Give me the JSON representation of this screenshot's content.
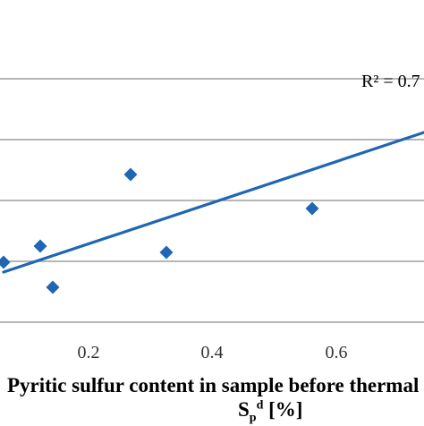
{
  "chart_data": {
    "type": "scatter",
    "x_ticks": [
      "0.2",
      "0.4",
      "0.6"
    ],
    "x_tick_values": [
      0.2,
      0.4,
      0.6
    ],
    "xlim": [
      0.0,
      0.8
    ],
    "ylim": [
      0.0,
      1.0
    ],
    "series": [
      {
        "marker": "diamond",
        "color": "#1f66b3",
        "points": [
          {
            "x": 0.005,
            "y": 0.205
          },
          {
            "x": 0.12,
            "y": 0.25
          },
          {
            "x": 0.14,
            "y": 0.12
          },
          {
            "x": 0.27,
            "y": 0.535
          },
          {
            "x": 0.33,
            "y": 0.23
          },
          {
            "x": 0.57,
            "y": 0.42
          }
        ]
      }
    ],
    "trendline": {
      "type": "linear",
      "color": "#1f66b3",
      "points": [
        {
          "x": 0.005,
          "y": 0.17
        },
        {
          "x": 0.8,
          "y": 0.76
        }
      ]
    },
    "annotation": "R² = 0.7",
    "xlabel_line1": "Pyritic sulfur content in sample before thermal",
    "xlabel_symbol": "S",
    "xlabel_sub": "p",
    "xlabel_sup": "d",
    "xlabel_unit": "[%]",
    "grid": true,
    "gridline_color": "#8a8a8a"
  }
}
